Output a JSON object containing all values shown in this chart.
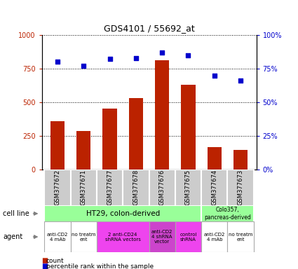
{
  "title": "GDS4101 / 55692_at",
  "samples": [
    "GSM377672",
    "GSM377671",
    "GSM377677",
    "GSM377678",
    "GSM377676",
    "GSM377675",
    "GSM377674",
    "GSM377673"
  ],
  "counts": [
    360,
    285,
    455,
    530,
    810,
    630,
    165,
    145
  ],
  "percentiles": [
    80,
    77,
    82,
    83,
    87,
    85,
    70,
    66
  ],
  "bar_color": "#bb2200",
  "scatter_color": "#0000cc",
  "ylim_left": [
    0,
    1000
  ],
  "ylim_right": [
    0,
    100
  ],
  "yticks_left": [
    0,
    250,
    500,
    750,
    1000
  ],
  "yticks_right": [
    0,
    25,
    50,
    75,
    100
  ],
  "agent_groups": [
    {
      "label": "anti-CD2\n4 mAb",
      "start": 0,
      "end": 1,
      "color": "#ffffff"
    },
    {
      "label": "no treatm\nent",
      "start": 1,
      "end": 2,
      "color": "#ffffff"
    },
    {
      "label": "2 anti-CD24\nshRNA vectors",
      "start": 2,
      "end": 4,
      "color": "#ee44ee"
    },
    {
      "label": "anti-CD2\n4 shRNA\nvector",
      "start": 4,
      "end": 5,
      "color": "#cc44cc"
    },
    {
      "label": "control\nshRNA",
      "start": 5,
      "end": 6,
      "color": "#ee44ee"
    },
    {
      "label": "anti-CD2\n4 mAb",
      "start": 6,
      "end": 7,
      "color": "#ffffff"
    },
    {
      "label": "no treatm\nent",
      "start": 7,
      "end": 8,
      "color": "#ffffff"
    }
  ],
  "bg_color": "#ffffff",
  "sample_box_color": "#cccccc",
  "ht29_color": "#99ff99",
  "colo_color": "#99ff99",
  "agent_border_color": "#aaaaaa"
}
